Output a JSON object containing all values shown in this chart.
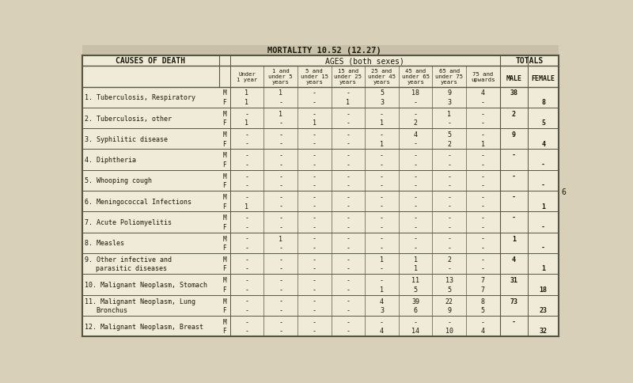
{
  "title": "MORTALITY 10.52 (12.27)",
  "section_header1": "AGES (both sexes)",
  "section_header2": "TOTALS",
  "age_labels": [
    "Under\n1 year",
    "1 and\nunder 5\nyears",
    "5 and\nunder 15\nyears",
    "15 and\nunder 25\nyears",
    "25 and\nunder 45\nyears",
    "45 and\nunder 65\nyears",
    "65 and\nunder 75\nyears",
    "75 and\nupwards"
  ],
  "rows": [
    {
      "num": "1.",
      "label": "Tuberculosis, Respiratory",
      "label2": null,
      "M": [
        "1",
        "1",
        "-",
        "-",
        "5",
        "18",
        "9",
        "4",
        "38",
        ""
      ],
      "F": [
        "1",
        "-",
        "-",
        "1",
        "3",
        "-",
        "3",
        "-",
        "",
        "8"
      ]
    },
    {
      "num": "2.",
      "label": "Tuberculosis, other",
      "label2": null,
      "M": [
        "-",
        "1",
        "-",
        "-",
        "-",
        "-",
        "1",
        "-",
        "2",
        ""
      ],
      "F": [
        "1",
        "-",
        "1",
        "-",
        "1",
        "2",
        "-",
        "-",
        "",
        "5"
      ]
    },
    {
      "num": "3.",
      "label": "Syphilitic disease",
      "label2": null,
      "M": [
        "-",
        "-",
        "-",
        "-",
        "-",
        "4",
        "5",
        "-",
        "9",
        ""
      ],
      "F": [
        "-",
        "-",
        "-",
        "-",
        "1",
        "-",
        "2",
        "1",
        "",
        "4"
      ]
    },
    {
      "num": "4.",
      "label": "Diphtheria",
      "label2": null,
      "M": [
        "-",
        "-",
        "-",
        "-",
        "-",
        "-",
        "-",
        "-",
        "-",
        ""
      ],
      "F": [
        "-",
        "-",
        "-",
        "-",
        "-",
        "-",
        "-",
        "-",
        "",
        "-"
      ]
    },
    {
      "num": "5.",
      "label": "Whooping cough",
      "label2": null,
      "M": [
        "-",
        "-",
        "-",
        "-",
        "-",
        "-",
        "-",
        "-",
        "-",
        ""
      ],
      "F": [
        "-",
        "-",
        "-",
        "-",
        "-",
        "-",
        "-",
        "-",
        "",
        "-"
      ]
    },
    {
      "num": "6.",
      "label": "Meningococcal Infections",
      "label2": null,
      "M": [
        "-",
        "-",
        "-",
        "-",
        "-",
        "-",
        "-",
        "-",
        "-",
        ""
      ],
      "F": [
        "1",
        "-",
        "-",
        "-",
        "-",
        "-",
        "-",
        "-",
        "",
        "1"
      ]
    },
    {
      "num": "7.",
      "label": "Acute Poliomyelitis",
      "label2": null,
      "M": [
        "-",
        "-",
        "-",
        "-",
        "-",
        "-",
        "-",
        "-",
        "-",
        ""
      ],
      "F": [
        "-",
        "-",
        "-",
        "-",
        "-",
        "-",
        "-",
        "-",
        "",
        "-"
      ]
    },
    {
      "num": "8.",
      "label": "Measles",
      "label2": null,
      "M": [
        "-",
        "1",
        "-",
        "-",
        "-",
        "-",
        "-",
        "-",
        "1",
        ""
      ],
      "F": [
        "-",
        "-",
        "-",
        "-",
        "-",
        "-",
        "-",
        "-",
        "",
        "-"
      ]
    },
    {
      "num": "9.",
      "label": "Other infective and",
      "label2": "parasitic diseases",
      "M": [
        "-",
        "-",
        "-",
        "-",
        "1",
        "1",
        "2",
        "-",
        "4",
        ""
      ],
      "F": [
        "-",
        "-",
        "-",
        "-",
        "-",
        "1",
        "-",
        "-",
        "",
        "1"
      ]
    },
    {
      "num": "10.",
      "label": "Malignant Neoplasm, Stomach",
      "label2": null,
      "M": [
        "-",
        "-",
        "-",
        "-",
        "-",
        "11",
        "13",
        "7",
        "31",
        ""
      ],
      "F": [
        "-",
        "-",
        "-",
        "-",
        "1",
        "5",
        "5",
        "7",
        "",
        "18"
      ]
    },
    {
      "num": "11.",
      "label": "Malignant Neoplasm, Lung",
      "label2": "Bronchus",
      "M": [
        "-",
        "-",
        "-",
        "-",
        "4",
        "39",
        "22",
        "8",
        "73",
        ""
      ],
      "F": [
        "-",
        "-",
        "-",
        "-",
        "3",
        "6",
        "9",
        "5",
        "",
        "23"
      ]
    },
    {
      "num": "12.",
      "label": "Malignant Neoplasm, Breast",
      "label2": null,
      "M": [
        "-",
        "-",
        "-",
        "-",
        "-",
        "-",
        "-",
        "-",
        "-",
        ""
      ],
      "F": [
        "-",
        "-",
        "-",
        "-",
        "4",
        "14",
        "10",
        "4",
        "",
        "32"
      ]
    }
  ],
  "bg_color": "#d8d0b8",
  "table_bg": "#f0ead8",
  "line_color": "#555544",
  "text_color": "#1a1a0a",
  "title_color": "#111100",
  "page_num": "6"
}
